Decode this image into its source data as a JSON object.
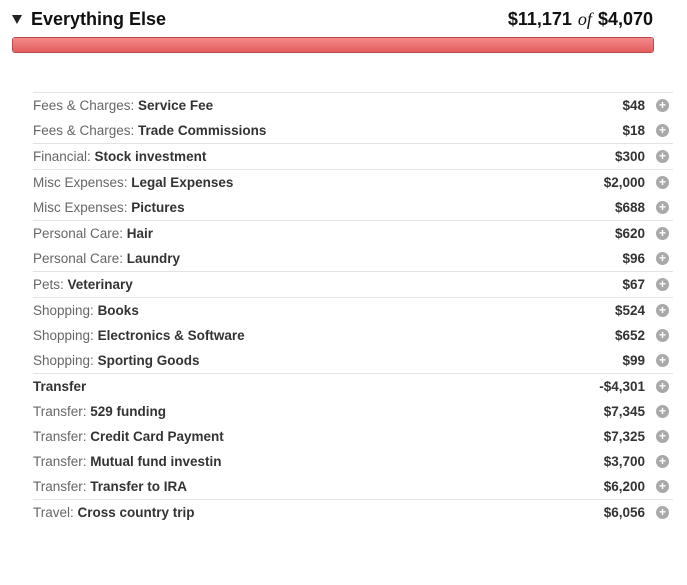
{
  "header": {
    "title": "Everything Else",
    "spent": "$11,171",
    "of_label": "of",
    "budget": "$4,070",
    "progress_fraction": 1.0,
    "bar_color": "#e35d5d"
  },
  "expand_icon": "plus-circle-icon",
  "groups": [
    {
      "rows": [
        {
          "category": "Fees & Charges: ",
          "subcategory": "Service Fee",
          "amount": "$48"
        },
        {
          "category": "Fees & Charges: ",
          "subcategory": "Trade Commissions",
          "amount": "$18"
        }
      ]
    },
    {
      "rows": [
        {
          "category": "Financial: ",
          "subcategory": "Stock investment",
          "amount": "$300"
        }
      ]
    },
    {
      "rows": [
        {
          "category": "Misc Expenses: ",
          "subcategory": "Legal Expenses",
          "amount": "$2,000"
        },
        {
          "category": "Misc Expenses: ",
          "subcategory": "Pictures",
          "amount": "$688"
        }
      ]
    },
    {
      "rows": [
        {
          "category": "Personal Care: ",
          "subcategory": "Hair",
          "amount": "$620"
        },
        {
          "category": "Personal Care: ",
          "subcategory": "Laundry",
          "amount": "$96"
        }
      ]
    },
    {
      "rows": [
        {
          "category": "Pets: ",
          "subcategory": "Veterinary",
          "amount": "$67"
        }
      ]
    },
    {
      "rows": [
        {
          "category": "Shopping: ",
          "subcategory": "Books",
          "amount": "$524"
        },
        {
          "category": "Shopping: ",
          "subcategory": "Electronics & Software",
          "amount": "$652"
        },
        {
          "category": "Shopping: ",
          "subcategory": "Sporting Goods",
          "amount": "$99"
        }
      ]
    },
    {
      "rows": [
        {
          "category": "Transfer",
          "subcategory": "",
          "amount": "-$4,301",
          "category_only": true
        },
        {
          "category": "Transfer: ",
          "subcategory": "529 funding",
          "amount": "$7,345"
        },
        {
          "category": "Transfer: ",
          "subcategory": "Credit Card Payment",
          "amount": "$7,325"
        },
        {
          "category": "Transfer: ",
          "subcategory": "Mutual fund investin",
          "amount": "$3,700"
        },
        {
          "category": "Transfer: ",
          "subcategory": "Transfer to IRA",
          "amount": "$6,200"
        }
      ]
    },
    {
      "rows": [
        {
          "category": "Travel: ",
          "subcategory": "Cross country trip",
          "amount": "$6,056"
        }
      ]
    }
  ]
}
